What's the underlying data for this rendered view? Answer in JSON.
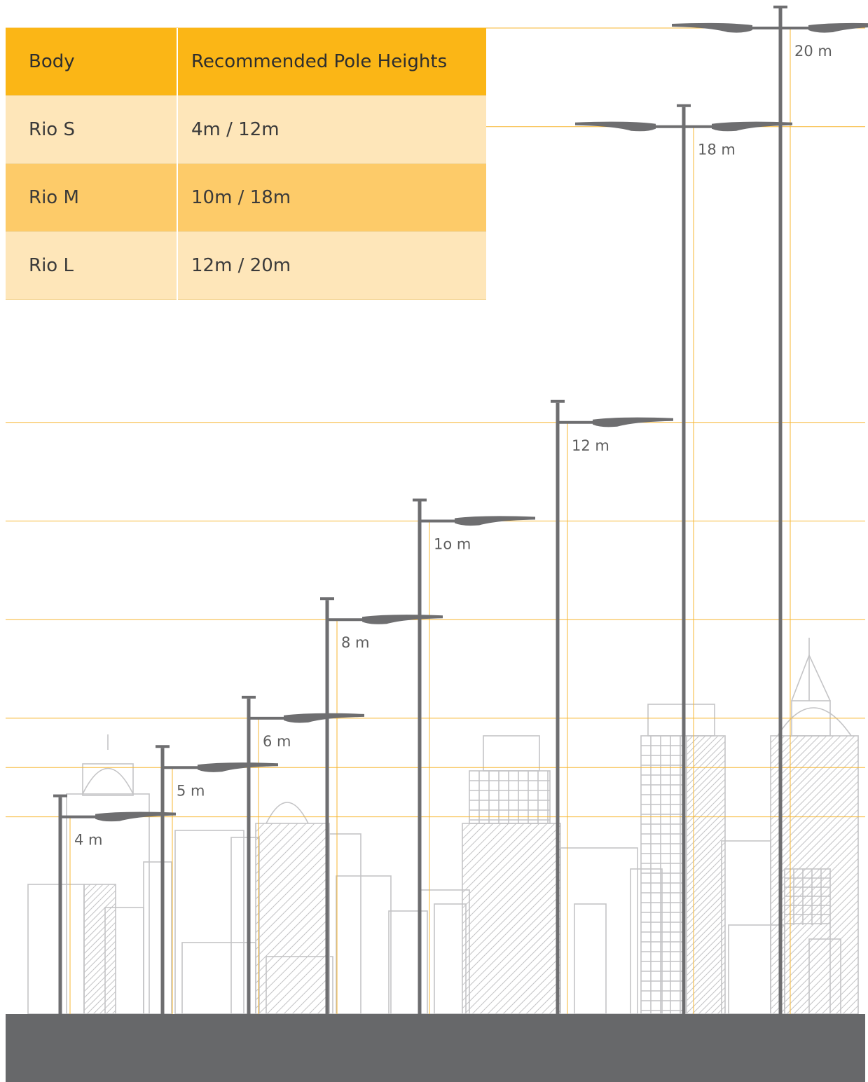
{
  "table": {
    "headers": [
      "Body",
      "Recommended Pole Heights"
    ],
    "rows": [
      {
        "body": "Rio S",
        "heights": "4m / 12m"
      },
      {
        "body": "Rio M",
        "heights": "10m / 18m"
      },
      {
        "body": "Rio L",
        "heights": "12m / 20m"
      }
    ]
  },
  "poles": [
    {
      "label": "4 m",
      "height_m": 4,
      "arms": "single"
    },
    {
      "label": "5 m",
      "height_m": 5,
      "arms": "single"
    },
    {
      "label": "6 m",
      "height_m": 6,
      "arms": "single"
    },
    {
      "label": "8 m",
      "height_m": 8,
      "arms": "single"
    },
    {
      "label": "1o m",
      "height_m": 10,
      "arms": "single"
    },
    {
      "label": "12 m",
      "height_m": 12,
      "arms": "single"
    },
    {
      "label": "18 m",
      "height_m": 18,
      "arms": "double"
    },
    {
      "label": "20 m",
      "height_m": 20,
      "arms": "double"
    }
  ],
  "colors": {
    "header_bg": "#fbb616",
    "row_light": "#fee6b9",
    "row_mid": "#fdcb69",
    "guide_line": "#f7b733",
    "pole": "#6e6e70",
    "ground": "#67686a",
    "sketch": "#c4c4c6"
  }
}
